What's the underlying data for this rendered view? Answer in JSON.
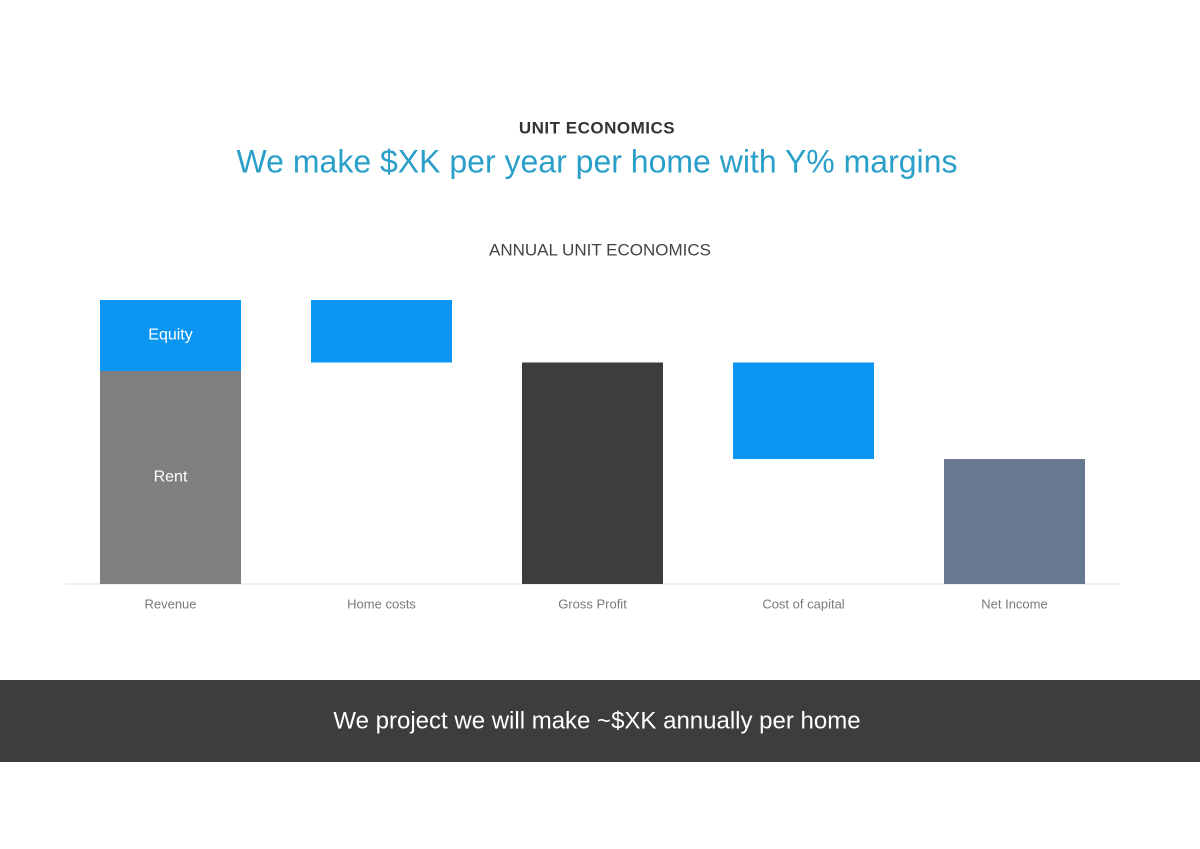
{
  "header": {
    "kicker": "UNIT ECONOMICS",
    "headline": "We make $XK per year per home with Y% margins"
  },
  "chart_data": {
    "type": "waterfall",
    "title": "ANNUAL UNIT ECONOMICS",
    "bars": [
      {
        "category": "Revenue",
        "measure": "total",
        "segments": [
          {
            "name": "Rent",
            "value": 75,
            "color": "#7f7f7f"
          },
          {
            "name": "Equity",
            "value": 25,
            "color": "#0b96f4"
          }
        ]
      },
      {
        "category": "Home costs",
        "measure": "decrease",
        "value": 22,
        "color": "#0b96f4"
      },
      {
        "category": "Gross Profit",
        "measure": "total",
        "value": 78,
        "color": "#3d3c3e"
      },
      {
        "category": "Cost of capital",
        "measure": "decrease",
        "value": 34,
        "color": "#0b96f4"
      },
      {
        "category": "Net Income",
        "measure": "total",
        "value": 44,
        "color": "#687890"
      }
    ]
  },
  "footer": {
    "text": "We project we will make ~$XK annually per home"
  }
}
